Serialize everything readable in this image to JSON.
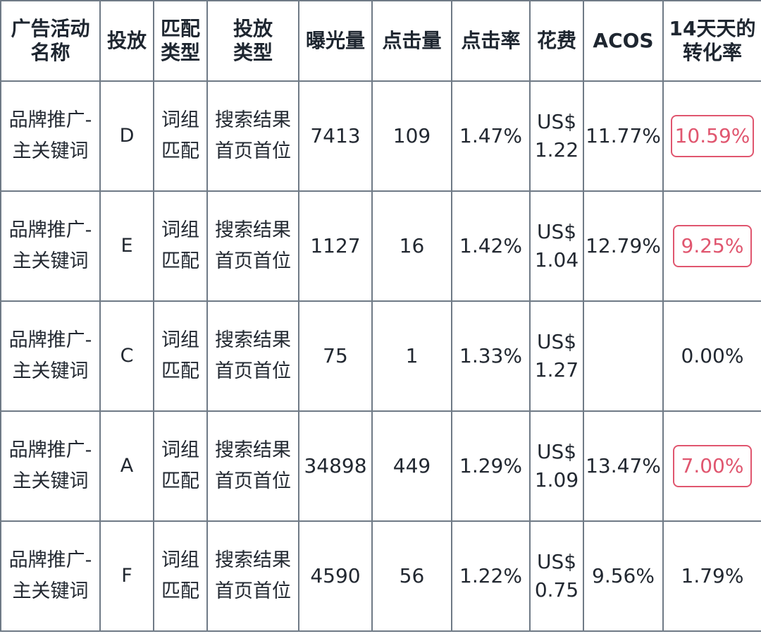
{
  "headers": {
    "campaign": [
      "广告活动",
      "名称"
    ],
    "targeting": "投放",
    "match_type": [
      "匹配",
      "类型"
    ],
    "placement": [
      "投放",
      "类型"
    ],
    "impressions": "曝光量",
    "clicks": "点击量",
    "ctr": "点击率",
    "spend": "花费",
    "acos": "ACOS",
    "conv": [
      "14天天的",
      "转化率"
    ]
  },
  "rows": [
    {
      "campaign": [
        "品牌推广-",
        "主关键词"
      ],
      "targeting": "D",
      "match_type": [
        "词组",
        "匹配"
      ],
      "placement": [
        "搜索结果",
        "首页首位"
      ],
      "impressions": "7413",
      "clicks": "109",
      "ctr": "1.47%",
      "spend": [
        "US$",
        "1.22"
      ],
      "acos": "11.77%",
      "conv": "10.59%",
      "conv_highlighted": true
    },
    {
      "campaign": [
        "品牌推广-",
        "主关键词"
      ],
      "targeting": "E",
      "match_type": [
        "词组",
        "匹配"
      ],
      "placement": [
        "搜索结果",
        "首页首位"
      ],
      "impressions": "1127",
      "clicks": "16",
      "ctr": "1.42%",
      "spend": [
        "US$",
        "1.04"
      ],
      "acos": "12.79%",
      "conv": "9.25%",
      "conv_highlighted": true
    },
    {
      "campaign": [
        "品牌推广-",
        "主关键词"
      ],
      "targeting": "C",
      "match_type": [
        "词组",
        "匹配"
      ],
      "placement": [
        "搜索结果",
        "首页首位"
      ],
      "impressions": "75",
      "clicks": "1",
      "ctr": "1.33%",
      "spend": [
        "US$",
        "1.27"
      ],
      "acos": "",
      "conv": "0.00%",
      "conv_highlighted": false
    },
    {
      "campaign": [
        "品牌推广-",
        "主关键词"
      ],
      "targeting": "A",
      "match_type": [
        "词组",
        "匹配"
      ],
      "placement": [
        "搜索结果",
        "首页首位"
      ],
      "impressions": "34898",
      "clicks": "449",
      "ctr": "1.29%",
      "spend": [
        "US$",
        "1.09"
      ],
      "acos": "13.47%",
      "conv": "7.00%",
      "conv_highlighted": true
    },
    {
      "campaign": [
        "品牌推广-",
        "主关键词"
      ],
      "targeting": "F",
      "match_type": [
        "词组",
        "匹配"
      ],
      "placement": [
        "搜索结果",
        "首页首位"
      ],
      "impressions": "4590",
      "clicks": "56",
      "ctr": "1.22%",
      "spend": [
        "US$",
        "0.75"
      ],
      "acos": "9.56%",
      "conv": "1.79%",
      "conv_highlighted": false
    }
  ],
  "colors": {
    "highlight": "#e0566f",
    "border": "#6f7a86",
    "text": "#222831"
  }
}
